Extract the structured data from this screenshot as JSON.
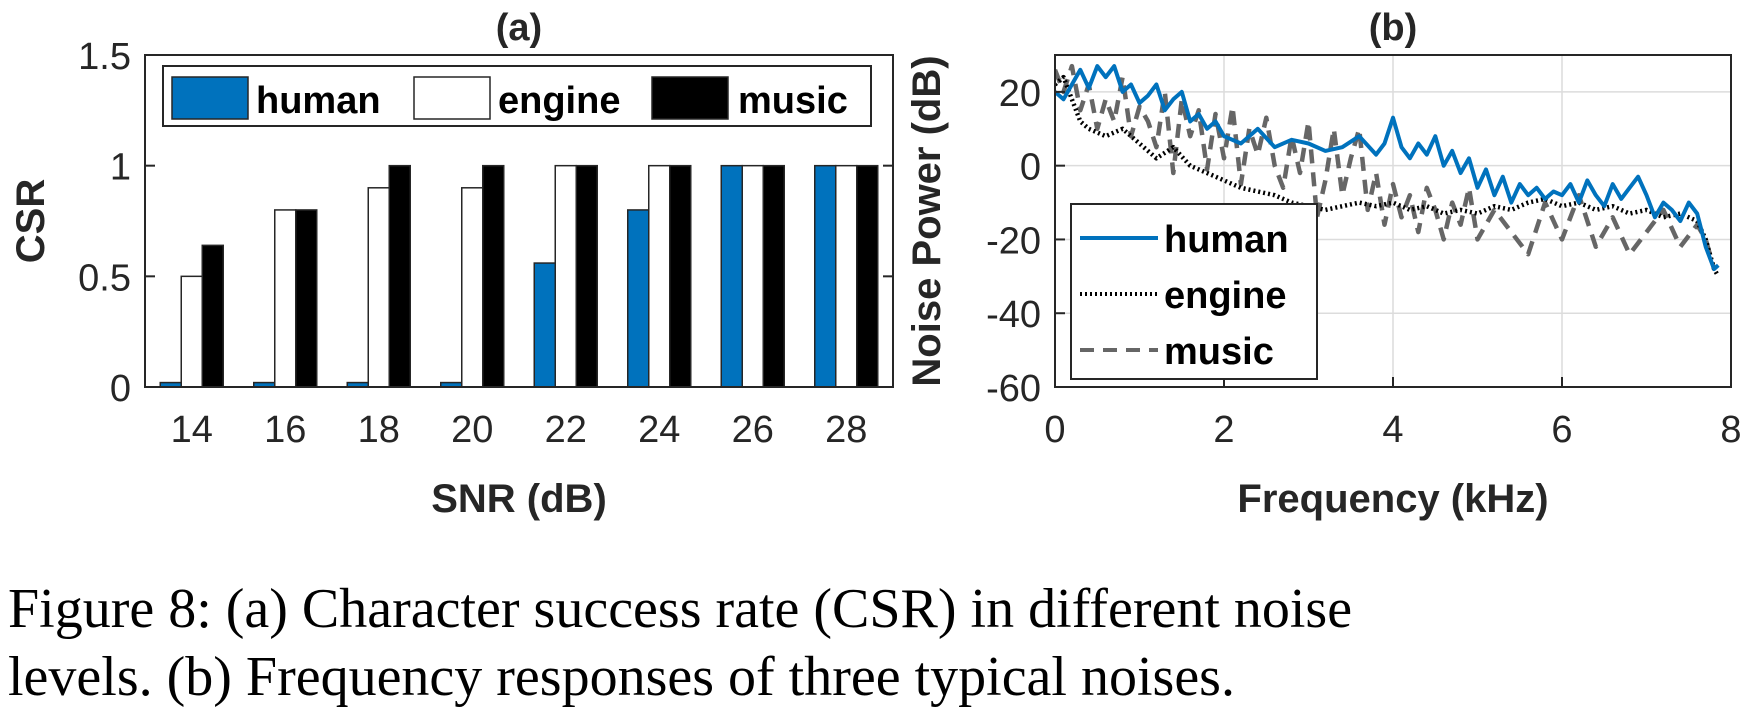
{
  "chart_data": [
    {
      "type": "bar",
      "title": "(a)",
      "xlabel": "SNR (dB)",
      "ylabel": "CSR",
      "ylim": [
        0,
        1.5
      ],
      "yticks": [
        0,
        0.5,
        1,
        1.5
      ],
      "ytick_labels": [
        "0",
        "0.5",
        "1",
        "1.5"
      ],
      "categories": [
        "14",
        "16",
        "18",
        "20",
        "22",
        "24",
        "26",
        "28"
      ],
      "series": [
        {
          "name": "human",
          "color": "#0072BD",
          "values": [
            0.02,
            0.02,
            0.02,
            0.02,
            0.56,
            0.8,
            1.0,
            1.0
          ]
        },
        {
          "name": "engine",
          "color": "#FFFFFF",
          "values": [
            0.5,
            0.8,
            0.9,
            0.9,
            1.0,
            1.0,
            1.0,
            1.0
          ]
        },
        {
          "name": "music",
          "color": "#000000",
          "values": [
            0.64,
            0.8,
            1.0,
            1.0,
            1.0,
            1.0,
            1.0,
            1.0
          ]
        }
      ],
      "legend": "top, horizontal",
      "grid": false
    },
    {
      "type": "line",
      "title": "(b)",
      "xlabel": "Frequency (kHz)",
      "ylabel": "Noise Power (dB)",
      "xlim": [
        0,
        8
      ],
      "ylim": [
        -60,
        30
      ],
      "xticks": [
        0,
        2,
        4,
        6,
        8
      ],
      "xtick_labels": [
        "0",
        "2",
        "4",
        "6",
        "8"
      ],
      "yticks": [
        -60,
        -40,
        -20,
        0,
        20
      ],
      "ytick_labels": [
        "-60",
        "-40",
        "-20",
        "0",
        "20"
      ],
      "grid": true,
      "legend": "bottom-left",
      "series": [
        {
          "name": "human",
          "color": "#0072BD",
          "style": "solid",
          "x": [
            0.0,
            0.1,
            0.2,
            0.3,
            0.4,
            0.5,
            0.6,
            0.7,
            0.8,
            0.9,
            1.0,
            1.1,
            1.2,
            1.3,
            1.4,
            1.5,
            1.6,
            1.7,
            1.8,
            1.9,
            2.0,
            2.2,
            2.4,
            2.6,
            2.8,
            3.0,
            3.2,
            3.4,
            3.6,
            3.8,
            3.9,
            4.0,
            4.1,
            4.2,
            4.3,
            4.4,
            4.5,
            4.6,
            4.7,
            4.8,
            4.9,
            5.0,
            5.1,
            5.2,
            5.3,
            5.4,
            5.5,
            5.6,
            5.7,
            5.8,
            5.9,
            6.0,
            6.1,
            6.2,
            6.3,
            6.4,
            6.5,
            6.6,
            6.7,
            6.8,
            6.9,
            7.0,
            7.1,
            7.2,
            7.3,
            7.4,
            7.5,
            7.6,
            7.7,
            7.8,
            7.85
          ],
          "y": [
            20,
            18,
            22,
            26,
            21,
            27,
            24,
            27,
            20,
            22,
            17,
            19,
            22,
            15,
            18,
            20,
            12,
            14,
            10,
            12,
            8,
            6,
            10,
            5,
            7,
            6,
            4,
            5,
            8,
            3,
            6,
            13,
            5,
            2,
            6,
            3,
            8,
            0,
            4,
            -2,
            2,
            -6,
            -1,
            -8,
            -3,
            -10,
            -5,
            -8,
            -6,
            -9,
            -7,
            -8,
            -5,
            -10,
            -4,
            -8,
            -11,
            -5,
            -9,
            -6,
            -3,
            -8,
            -14,
            -10,
            -12,
            -15,
            -10,
            -13,
            -22,
            -28,
            -27
          ]
        },
        {
          "name": "engine",
          "color": "#000000",
          "style": "dotted",
          "x": [
            0.0,
            0.1,
            0.2,
            0.3,
            0.4,
            0.6,
            0.8,
            1.0,
            1.2,
            1.4,
            1.6,
            1.8,
            2.0,
            2.2,
            2.4,
            2.6,
            2.8,
            3.0,
            3.2,
            3.4,
            3.6,
            3.8,
            4.0,
            4.2,
            4.4,
            4.6,
            4.8,
            5.0,
            5.2,
            5.4,
            5.6,
            5.8,
            6.0,
            6.2,
            6.4,
            6.6,
            6.8,
            7.0,
            7.2,
            7.4,
            7.6,
            7.7,
            7.8,
            7.85
          ],
          "y": [
            22,
            24,
            18,
            12,
            10,
            8,
            10,
            6,
            2,
            5,
            0,
            -2,
            -4,
            -6,
            -7,
            -8,
            -10,
            -11,
            -12,
            -11,
            -10,
            -11,
            -10,
            -12,
            -11,
            -13,
            -12,
            -13,
            -11,
            -12,
            -10,
            -9,
            -11,
            -10,
            -12,
            -11,
            -13,
            -12,
            -14,
            -13,
            -15,
            -20,
            -28,
            -30
          ]
        },
        {
          "name": "music",
          "color": "#666666",
          "style": "dashed",
          "x": [
            0.0,
            0.1,
            0.2,
            0.3,
            0.4,
            0.5,
            0.6,
            0.7,
            0.8,
            0.9,
            1.0,
            1.1,
            1.2,
            1.3,
            1.4,
            1.5,
            1.6,
            1.7,
            1.8,
            1.9,
            2.0,
            2.1,
            2.2,
            2.3,
            2.4,
            2.5,
            2.6,
            2.7,
            2.8,
            2.9,
            3.0,
            3.1,
            3.2,
            3.3,
            3.4,
            3.5,
            3.6,
            3.7,
            3.8,
            3.9,
            4.0,
            4.1,
            4.2,
            4.3,
            4.4,
            4.5,
            4.6,
            4.7,
            4.8,
            4.9,
            5.0,
            5.2,
            5.4,
            5.6,
            5.8,
            6.0,
            6.2,
            6.4,
            6.6,
            6.8,
            7.0,
            7.2,
            7.4,
            7.6,
            7.7,
            7.8
          ],
          "y": [
            26,
            20,
            27,
            15,
            22,
            10,
            18,
            12,
            24,
            8,
            16,
            12,
            5,
            20,
            -2,
            18,
            8,
            15,
            -1,
            14,
            2,
            16,
            -5,
            10,
            3,
            13,
            0,
            -6,
            8,
            -2,
            12,
            -14,
            -4,
            10,
            -8,
            2,
            10,
            -12,
            -2,
            -16,
            -5,
            -14,
            -8,
            -18,
            -6,
            -12,
            -20,
            -10,
            -16,
            -6,
            -20,
            -12,
            -18,
            -24,
            -10,
            -20,
            -8,
            -22,
            -14,
            -24,
            -18,
            -12,
            -22,
            -16,
            -20,
            -28
          ]
        }
      ]
    }
  ],
  "caption": {
    "line1": "Figure 8: (a) Character success rate (CSR) in different noise",
    "line2": "levels. (b) Frequency responses of three typical noises."
  }
}
